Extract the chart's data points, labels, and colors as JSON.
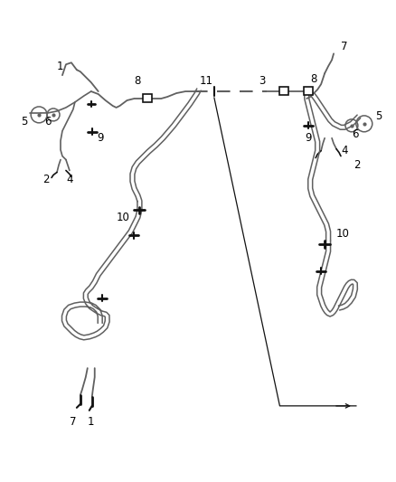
{
  "bg_color": "#ffffff",
  "line_color": "#606060",
  "dark_color": "#111111",
  "label_color": "#000000",
  "fig_width": 4.38,
  "fig_height": 5.33,
  "dpi": 100
}
